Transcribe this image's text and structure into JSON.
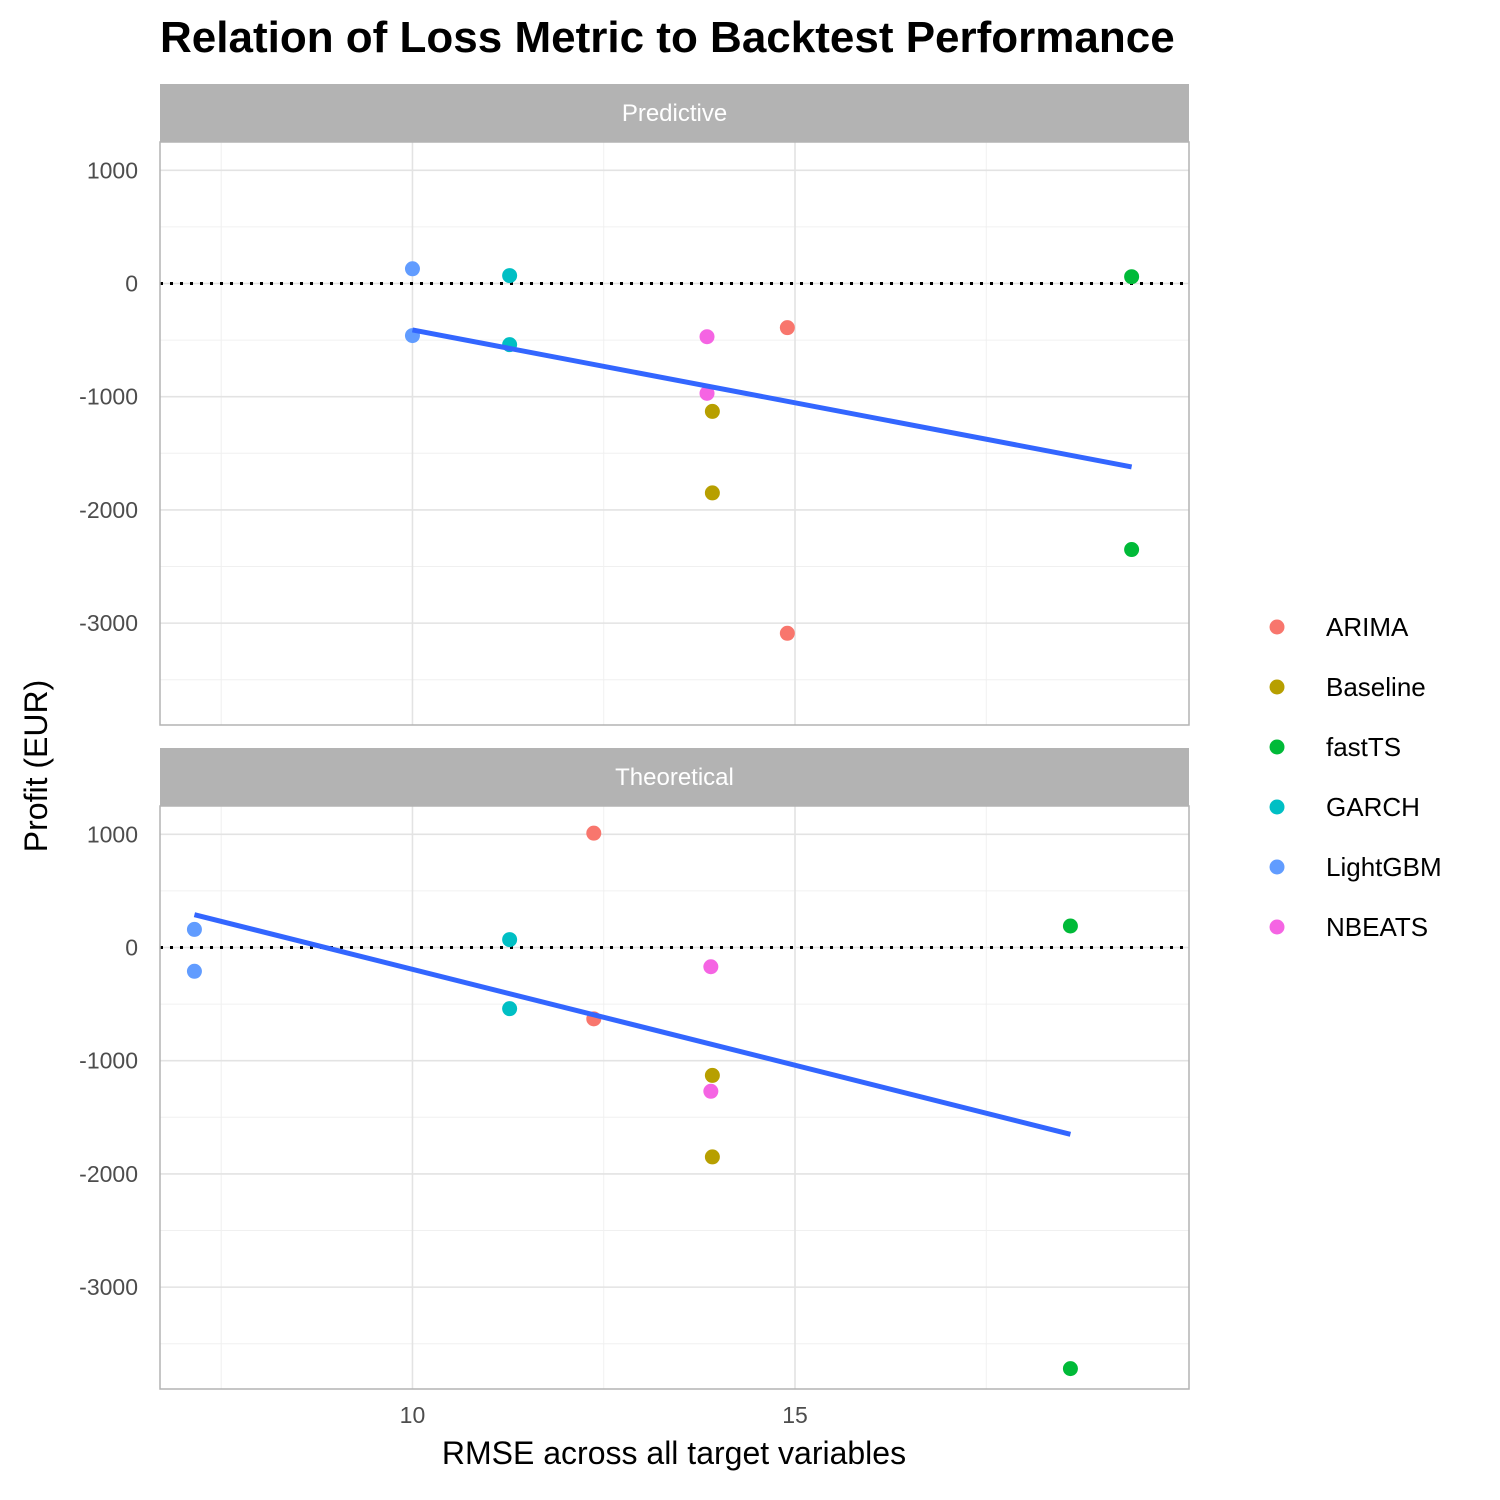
{
  "chart_data": {
    "type": "scatter",
    "title": "Relation of Loss Metric to Backtest Performance",
    "xlabel": "RMSE across all target variables",
    "ylabel": "Profit (EUR)",
    "xlim": [
      6.7,
      20.15
    ],
    "ylim": [
      -3900,
      1250
    ],
    "x_ticks": [
      10,
      15
    ],
    "x_tick_labels": [
      "10",
      "15"
    ],
    "y_ticks": [
      1000,
      0,
      -1000,
      -2000,
      -3000
    ],
    "y_tick_labels": [
      "1000",
      "0",
      "-1000",
      "-2000",
      "-3000"
    ],
    "grid": true,
    "reference_line_y": 0,
    "legend_position": "right",
    "series": [
      {
        "name": "ARIMA",
        "color": "#F8766D"
      },
      {
        "name": "Baseline",
        "color": "#B79F00"
      },
      {
        "name": "fastTS",
        "color": "#00BA38"
      },
      {
        "name": "GARCH",
        "color": "#00BFC4"
      },
      {
        "name": "LightGBM",
        "color": "#619CFF"
      },
      {
        "name": "NBEATS",
        "color": "#F564E3"
      }
    ],
    "facets": [
      {
        "label": "Predictive",
        "points": [
          {
            "series": "LightGBM",
            "x": 10.0,
            "y": 130
          },
          {
            "series": "LightGBM",
            "x": 10.0,
            "y": -460
          },
          {
            "series": "GARCH",
            "x": 11.27,
            "y": 70
          },
          {
            "series": "GARCH",
            "x": 11.27,
            "y": -540
          },
          {
            "series": "NBEATS",
            "x": 13.85,
            "y": -470
          },
          {
            "series": "NBEATS",
            "x": 13.85,
            "y": -970
          },
          {
            "series": "Baseline",
            "x": 13.92,
            "y": -1130
          },
          {
            "series": "Baseline",
            "x": 13.92,
            "y": -1850
          },
          {
            "series": "ARIMA",
            "x": 14.9,
            "y": -390
          },
          {
            "series": "ARIMA",
            "x": 14.9,
            "y": -3090
          },
          {
            "series": "fastTS",
            "x": 19.4,
            "y": 60
          },
          {
            "series": "fastTS",
            "x": 19.4,
            "y": -2350
          }
        ],
        "trend": {
          "x": [
            10.0,
            19.4
          ],
          "y": [
            -410,
            -1620
          ],
          "color": "#3366FF"
        }
      },
      {
        "label": "Theoretical",
        "points": [
          {
            "series": "LightGBM",
            "x": 7.15,
            "y": 160
          },
          {
            "series": "LightGBM",
            "x": 7.15,
            "y": -210
          },
          {
            "series": "GARCH",
            "x": 11.27,
            "y": 70
          },
          {
            "series": "GARCH",
            "x": 11.27,
            "y": -540
          },
          {
            "series": "ARIMA",
            "x": 12.37,
            "y": 1010
          },
          {
            "series": "ARIMA",
            "x": 12.37,
            "y": -630
          },
          {
            "series": "NBEATS",
            "x": 13.9,
            "y": -170
          },
          {
            "series": "NBEATS",
            "x": 13.9,
            "y": -1270
          },
          {
            "series": "Baseline",
            "x": 13.92,
            "y": -1130
          },
          {
            "series": "Baseline",
            "x": 13.92,
            "y": -1850
          },
          {
            "series": "fastTS",
            "x": 18.6,
            "y": 190
          },
          {
            "series": "fastTS",
            "x": 18.6,
            "y": -3720
          }
        ],
        "trend": {
          "x": [
            7.15,
            18.6
          ],
          "y": [
            290,
            -1650
          ],
          "color": "#3366FF"
        }
      }
    ]
  }
}
